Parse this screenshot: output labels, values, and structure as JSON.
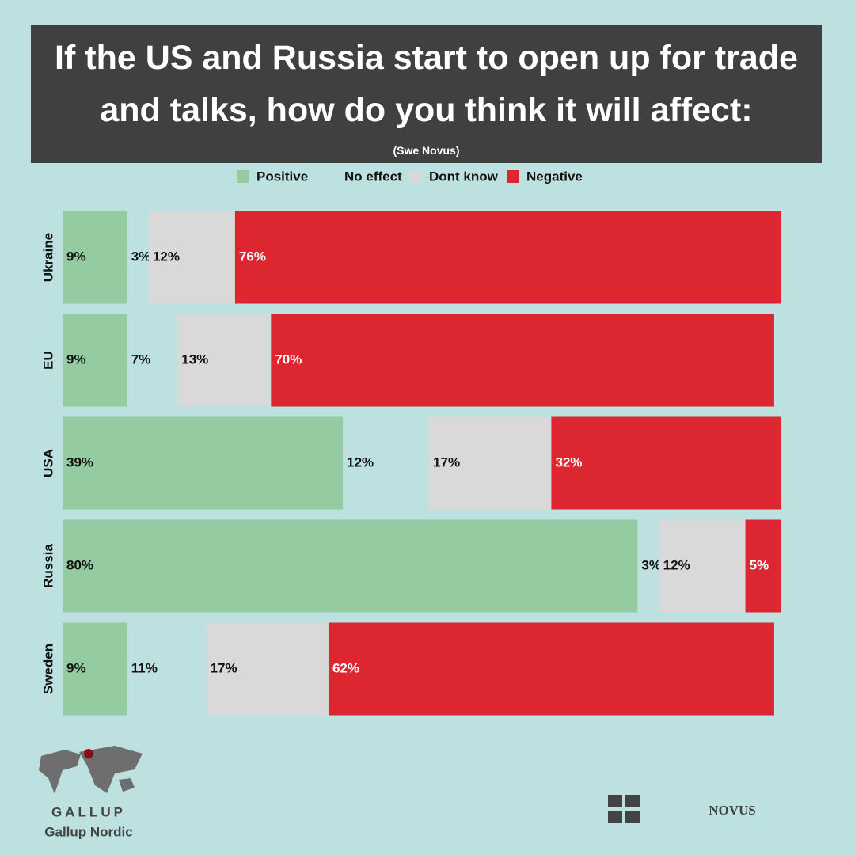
{
  "chart_data": {
    "type": "stacked-barh",
    "title": "If the US and Russia start to open up for trade and talks, how do you think it will affect:",
    "subtitle": "(Swe Novus)",
    "categories": [
      "Ukraine",
      "EU",
      "USA",
      "Russia",
      "Sweden"
    ],
    "series": [
      {
        "name": "Positive",
        "color": "#95cba0",
        "values": [
          9,
          9,
          39,
          80,
          9
        ],
        "value_labels": [
          "9%",
          "9%",
          "39%",
          "80%",
          "9%"
        ]
      },
      {
        "name": "No effect",
        "color": "#bde0e0",
        "values": [
          3,
          7,
          12,
          3,
          11
        ],
        "value_labels": [
          "3%",
          "7%",
          "12%",
          "3%",
          "11%"
        ]
      },
      {
        "name": "Dont know",
        "color": "#d9d9d9",
        "values": [
          12,
          13,
          17,
          12,
          17
        ],
        "value_labels": [
          "12%",
          "13%",
          "17%",
          "12%",
          "17%"
        ]
      },
      {
        "name": "Negative",
        "color": "#dc2630",
        "values": [
          76,
          70,
          32,
          5,
          62
        ],
        "value_labels": [
          "76%",
          "70%",
          "32%",
          "5%",
          "62%"
        ]
      }
    ],
    "xlim": [
      0,
      100
    ],
    "annotations": [
      "GALLUP",
      "Gallup Nordic",
      "NOVUS"
    ]
  }
}
